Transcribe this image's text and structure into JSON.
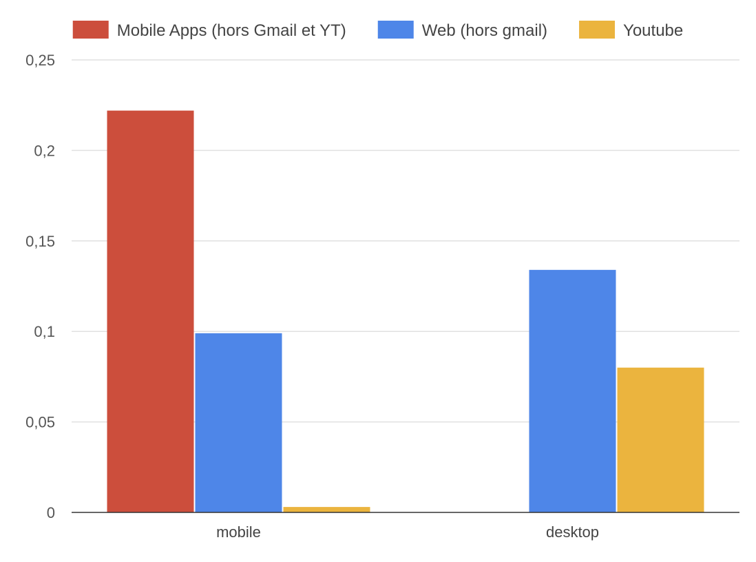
{
  "chart_data": {
    "type": "bar",
    "categories": [
      "mobile",
      "desktop"
    ],
    "series": [
      {
        "name": "Mobile Apps (hors Gmail et YT)",
        "color": "#cc4e3c",
        "values": [
          0.222,
          0
        ]
      },
      {
        "name": "Web (hors gmail)",
        "color": "#4e86e8",
        "values": [
          0.099,
          0.134
        ]
      },
      {
        "name": "Youtube",
        "color": "#ebb43e",
        "values": [
          0.003,
          0.08
        ]
      }
    ],
    "yticks": [
      0,
      0.05,
      0.1,
      0.15,
      0.2,
      0.25
    ],
    "ytick_labels": [
      "0",
      "0,05",
      "0,1",
      "0,15",
      "0,2",
      "0,25"
    ],
    "ylim": [
      0,
      0.25
    ],
    "grid": true,
    "legend_position": "top"
  }
}
